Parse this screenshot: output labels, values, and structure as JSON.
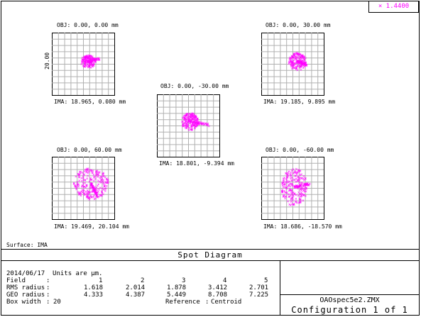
{
  "wavelength": "1.4400",
  "surface_label": "Surface: IMA",
  "diagram_title": "Spot Diagram",
  "scale_label": "20.00",
  "spots": [
    {
      "obj": "OBJ: 0.00, 0.00 mm",
      "ima": "IMA: 18.965, 0.080 mm"
    },
    {
      "obj": "OBJ: 0.00, 30.00 mm",
      "ima": "IMA: 19.185, 9.895 mm"
    },
    {
      "obj": "OBJ: 0.00, -30.00 mm",
      "ima": "IMA: 18.801, -9.394 mm"
    },
    {
      "obj": "OBJ: 0.00, 60.00 mm",
      "ima": "IMA: 19.469, 20.104 mm"
    },
    {
      "obj": "OBJ: 0.00, -60.00 mm",
      "ima": "IMA: 18.686, -18.570 mm"
    }
  ],
  "info": {
    "date_line": "2014/06/17  Units are µm.",
    "field_label": "Field",
    "fields": [
      "1",
      "2",
      "3",
      "4",
      "5"
    ],
    "rms_label": "RMS radius",
    "rms": [
      "1.618",
      "2.014",
      "1.878",
      "3.412",
      "2.701"
    ],
    "geo_label": "GEO radius",
    "geo": [
      "4.333",
      "4.387",
      "5.449",
      "8.708",
      "7.225"
    ],
    "box_label": "Box width",
    "box_value": "20",
    "reference_label": "Reference",
    "reference_value": "Centroid"
  },
  "file_name": "OAOspec5e2.ZMX",
  "configuration": "Configuration 1 of 1",
  "colors": {
    "spot": "#ff00ff",
    "grid": "#b0b0b0",
    "wavelength_text": "#ff00ff"
  }
}
